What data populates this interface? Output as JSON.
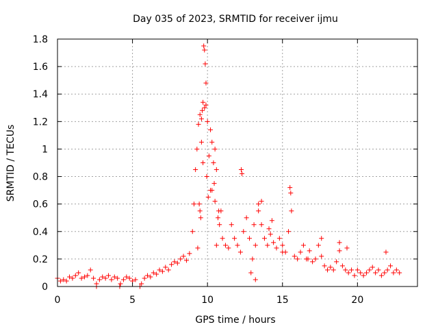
{
  "chart_data": {
    "type": "scatter",
    "title": "Day 035 of 2023, SRMTID for receiver ijmu",
    "xlabel": "GPS time / hours",
    "ylabel": "SRMTID / TECUs",
    "xlim": [
      0,
      24
    ],
    "ylim": [
      0,
      1.8
    ],
    "xticks": [
      0,
      5,
      10,
      15,
      20
    ],
    "xtick_labels": [
      "0",
      "5",
      "10",
      "15",
      "20"
    ],
    "yticks": [
      0,
      0.2,
      0.4,
      0.6,
      0.8,
      1.0,
      1.2,
      1.4,
      1.6,
      1.8
    ],
    "ytick_labels": [
      "0",
      "0.2",
      "0.4",
      "0.6",
      "0.8",
      "1",
      "1.2",
      "1.4",
      "1.6",
      "1.8"
    ],
    "grid": true,
    "marker": "plus",
    "color": "#ff0000",
    "series": [
      {
        "name": "SRMTID",
        "x": [
          0.0,
          0.2,
          0.4,
          0.6,
          0.8,
          1.0,
          1.2,
          1.4,
          1.6,
          1.8,
          2.0,
          2.2,
          2.4,
          2.6,
          2.8,
          3.0,
          3.2,
          3.4,
          3.6,
          3.8,
          4.0,
          4.2,
          4.4,
          4.6,
          4.8,
          5.0,
          5.2,
          5.6,
          5.8,
          6.0,
          6.2,
          6.4,
          6.6,
          6.8,
          7.0,
          7.2,
          7.4,
          7.6,
          7.8,
          8.0,
          8.2,
          8.4,
          8.6,
          8.8,
          9.0,
          9.1,
          9.2,
          9.3,
          9.4,
          9.5,
          9.6,
          9.7,
          9.8,
          9.9,
          10.0,
          10.1,
          10.2,
          10.3,
          10.4,
          10.5,
          10.6,
          10.7,
          10.8,
          10.9,
          11.0,
          11.2,
          11.4,
          11.6,
          11.8,
          12.0,
          12.2,
          12.4,
          12.6,
          12.8,
          13.0,
          13.2,
          13.4,
          13.6,
          13.8,
          14.0,
          14.2,
          14.4,
          14.6,
          14.8,
          15.0,
          15.2,
          15.4,
          15.6,
          15.8,
          16.0,
          16.2,
          16.4,
          16.6,
          16.8,
          17.0,
          17.2,
          17.4,
          17.6,
          17.8,
          18.0,
          18.2,
          18.4,
          18.6,
          18.8,
          19.0,
          19.2,
          19.4,
          19.6,
          19.8,
          20.0,
          20.2,
          20.4,
          20.6,
          20.8,
          21.0,
          21.2,
          21.4,
          21.6,
          21.8,
          22.0,
          22.2,
          22.4,
          22.6,
          22.8,
          9.75,
          9.8,
          9.85,
          9.9,
          9.6,
          9.65,
          9.7,
          9.45,
          9.5,
          9.55,
          10.2,
          10.3,
          10.45,
          10.5,
          12.25,
          12.3,
          13.1,
          13.4,
          13.6,
          15.5,
          15.55,
          18.8,
          21.9,
          2.6,
          4.15,
          5.5,
          9.35,
          9.95,
          10.05,
          10.6,
          10.75,
          12.9,
          13.2,
          14.1,
          14.3,
          15.0,
          16.7,
          17.6,
          19.3
        ],
        "y": [
          0.06,
          0.04,
          0.05,
          0.04,
          0.07,
          0.06,
          0.08,
          0.1,
          0.06,
          0.07,
          0.08,
          0.12,
          0.06,
          0.02,
          0.05,
          0.07,
          0.06,
          0.08,
          0.05,
          0.07,
          0.06,
          0.02,
          0.05,
          0.07,
          0.06,
          0.04,
          0.05,
          0.02,
          0.06,
          0.08,
          0.07,
          0.1,
          0.09,
          0.12,
          0.11,
          0.14,
          0.12,
          0.16,
          0.18,
          0.17,
          0.2,
          0.22,
          0.19,
          0.24,
          0.4,
          0.6,
          0.85,
          1.0,
          1.18,
          1.25,
          1.05,
          0.9,
          1.3,
          1.32,
          1.2,
          0.95,
          0.7,
          1.05,
          0.9,
          1.0,
          0.85,
          0.5,
          0.45,
          0.55,
          0.35,
          0.3,
          0.28,
          0.45,
          0.35,
          0.3,
          0.25,
          0.4,
          0.5,
          0.35,
          0.2,
          0.3,
          0.55,
          0.45,
          0.35,
          0.3,
          0.38,
          0.32,
          0.28,
          0.35,
          0.3,
          0.25,
          0.4,
          0.55,
          0.22,
          0.2,
          0.25,
          0.3,
          0.2,
          0.26,
          0.18,
          0.2,
          0.3,
          0.22,
          0.15,
          0.12,
          0.14,
          0.12,
          0.18,
          0.26,
          0.15,
          0.12,
          0.1,
          0.12,
          0.08,
          0.12,
          0.1,
          0.08,
          0.1,
          0.12,
          0.14,
          0.1,
          0.12,
          0.08,
          0.1,
          0.12,
          0.15,
          0.1,
          0.12,
          0.1,
          1.75,
          1.72,
          1.62,
          1.48,
          1.22,
          1.28,
          1.34,
          0.6,
          0.55,
          0.5,
          1.14,
          0.7,
          0.75,
          0.62,
          0.85,
          0.82,
          0.45,
          0.6,
          0.62,
          0.72,
          0.68,
          0.32,
          0.25,
          0.0,
          0.0,
          0.0,
          0.28,
          0.8,
          0.65,
          0.3,
          0.55,
          0.1,
          0.05,
          0.42,
          0.48,
          0.25,
          0.2,
          0.35,
          0.28
        ]
      }
    ]
  }
}
